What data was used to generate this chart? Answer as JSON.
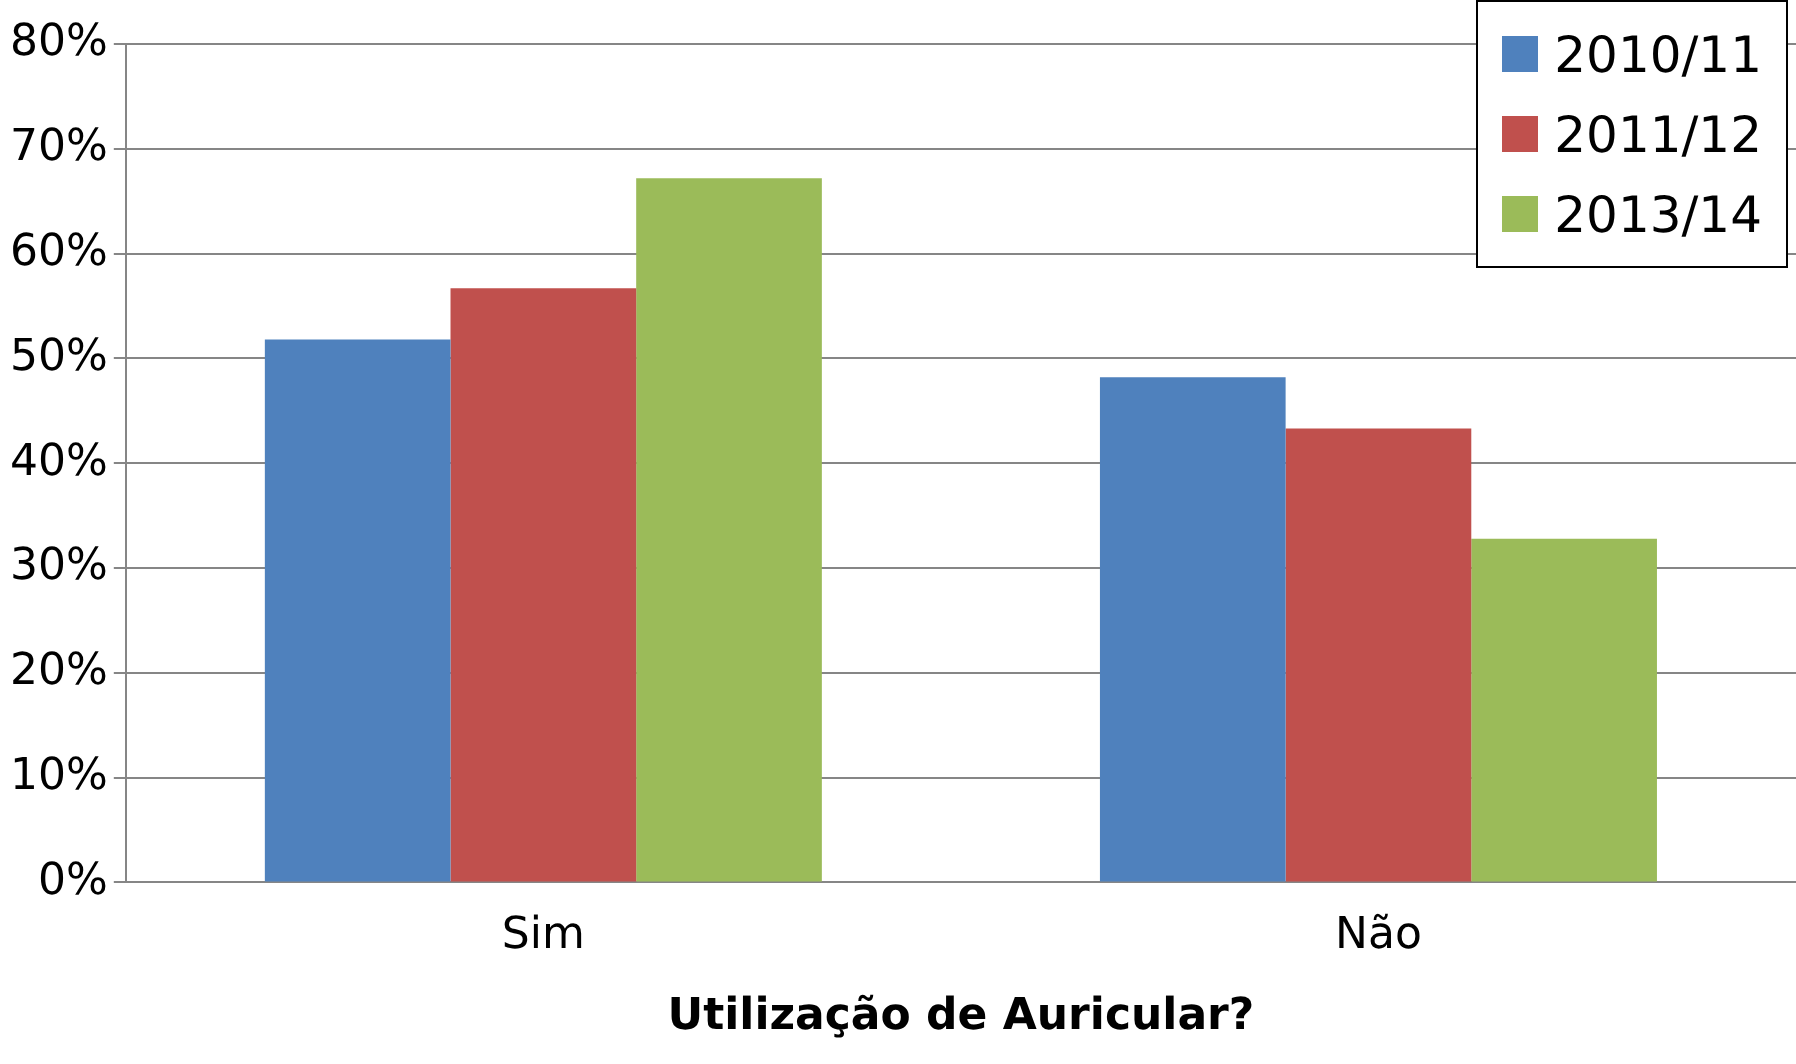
{
  "chart_data": {
    "type": "bar",
    "xlabel": "Utilização de Auricular?",
    "categories": [
      "Sim",
      "Não"
    ],
    "series": [
      {
        "name": "2010/11",
        "color": "#4f81bd",
        "values": [
          51.8,
          48.2
        ]
      },
      {
        "name": "2011/12",
        "color": "#c0504d",
        "values": [
          56.7,
          43.3
        ]
      },
      {
        "name": "2013/14",
        "color": "#9bbb59",
        "values": [
          67.2,
          32.8
        ]
      }
    ],
    "ylim": [
      0,
      80
    ],
    "yticks": [
      {
        "value": 0,
        "label": "0%"
      },
      {
        "value": 10,
        "label": "10%"
      },
      {
        "value": 20,
        "label": "20%"
      },
      {
        "value": 30,
        "label": "30%"
      },
      {
        "value": 40,
        "label": "40%"
      },
      {
        "value": 50,
        "label": "50%"
      },
      {
        "value": 60,
        "label": "60%"
      },
      {
        "value": 70,
        "label": "70%"
      },
      {
        "value": 80,
        "label": "80%"
      }
    ],
    "grid": "y",
    "legend": "top right"
  }
}
